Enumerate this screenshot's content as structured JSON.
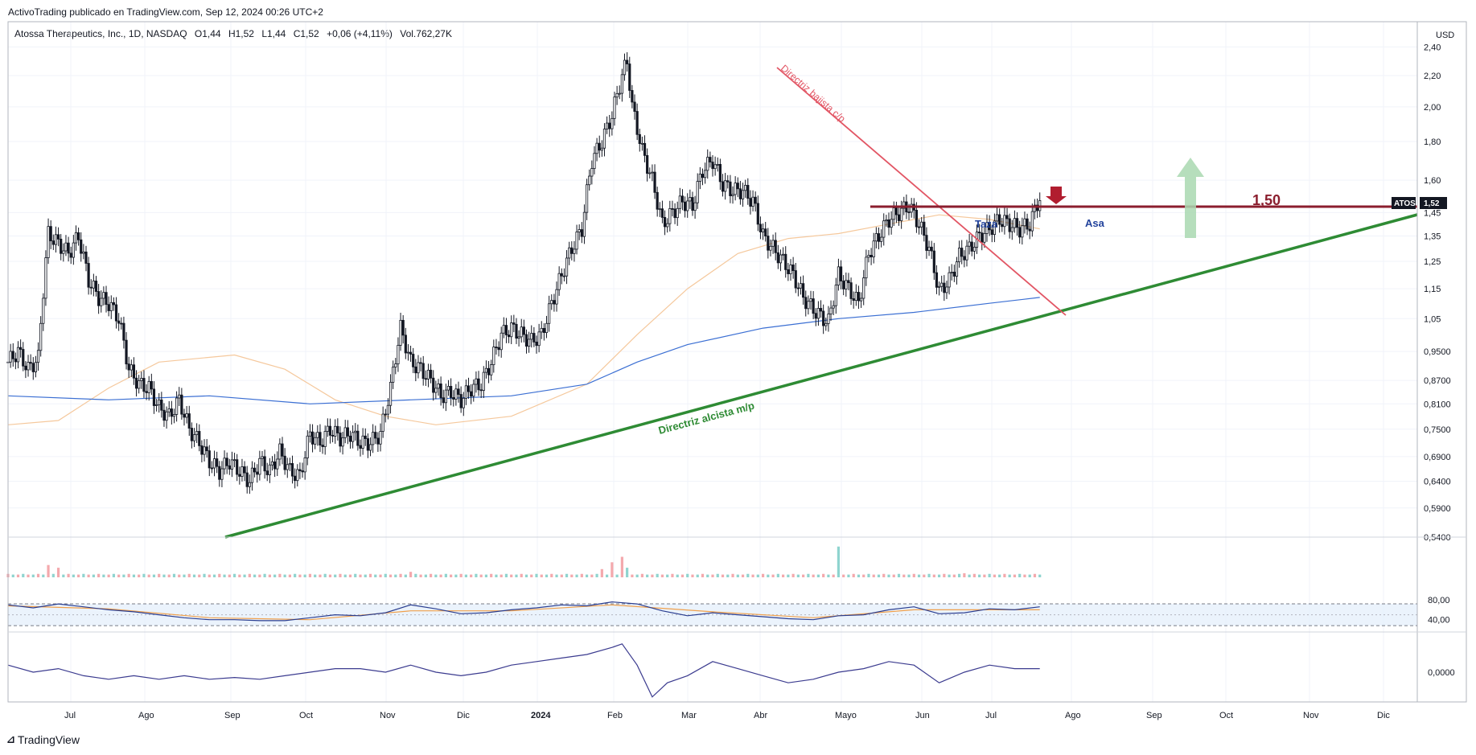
{
  "header": {
    "publisher": "ActivoTrading publicado en TradingView.com, Sep 12, 2024 00:26 UTC+2",
    "symbol": "Atossa Therapeutics, Inc., 1D, NASDAQ",
    "open": "O1,44",
    "high": "H1,52",
    "low": "L1,44",
    "close": "C1,52",
    "change": "+0,06 (+4,11%)",
    "volume": "Vol.762,27K"
  },
  "currency": "USD",
  "footer": {
    "brand": "TradingView",
    "icon": "tradingview-logo-icon"
  },
  "colors": {
    "up": "#131722",
    "down": "#131722",
    "sma_slow": "#3b6fd3",
    "sma_fast": "#f5c89c",
    "support": "#2e8b34",
    "downtrend": "#e25564",
    "resistance": "#8b1e2e",
    "arrow_up": "#a9d8b0",
    "rsi": "#2a3d8f",
    "rsi_ma": "#f0a04b",
    "osc": "#3b3b8f",
    "grid": "#f0f3fa"
  },
  "chart_data": {
    "type": "candlestick",
    "title": "Atossa Therapeutics, Inc., 1D, NASDAQ",
    "y_scale": "log",
    "ylim": [
      0.54,
      2.45
    ],
    "y_ticks": [
      "2,40",
      "2,20",
      "2,00",
      "1,80",
      "1,60",
      "1,45",
      "1,35",
      "1,25",
      "1,15",
      "1,05",
      "0,9500",
      "0,8700",
      "0,8100",
      "0,7500",
      "0,6900",
      "0,6400",
      "0,5900",
      "0,5400"
    ],
    "x_labels": [
      "Jul",
      "Ago",
      "Sep",
      "Oct",
      "Nov",
      "Dic",
      "2024",
      "Feb",
      "Mar",
      "Abr",
      "Mayo",
      "Jun",
      "Jul",
      "Ago",
      "Sep",
      "Oct",
      "Nov",
      "Dic"
    ],
    "price_path": [
      [
        0,
        0.92
      ],
      [
        4,
        0.95
      ],
      [
        8,
        0.9
      ],
      [
        12,
        0.93
      ],
      [
        16,
        1.36
      ],
      [
        20,
        1.32
      ],
      [
        24,
        1.28
      ],
      [
        28,
        1.35
      ],
      [
        32,
        1.18
      ],
      [
        36,
        1.12
      ],
      [
        40,
        1.1
      ],
      [
        44,
        1.05
      ],
      [
        48,
        0.9
      ],
      [
        52,
        0.86
      ],
      [
        56,
        0.85
      ],
      [
        60,
        0.8
      ],
      [
        64,
        0.78
      ],
      [
        68,
        0.82
      ],
      [
        72,
        0.75
      ],
      [
        76,
        0.72
      ],
      [
        80,
        0.68
      ],
      [
        84,
        0.66
      ],
      [
        88,
        0.68
      ],
      [
        92,
        0.66
      ],
      [
        96,
        0.64
      ],
      [
        100,
        0.68
      ],
      [
        104,
        0.66
      ],
      [
        108,
        0.7
      ],
      [
        112,
        0.66
      ],
      [
        116,
        0.65
      ],
      [
        120,
        0.74
      ],
      [
        124,
        0.72
      ],
      [
        128,
        0.75
      ],
      [
        132,
        0.73
      ],
      [
        136,
        0.74
      ],
      [
        140,
        0.72
      ],
      [
        144,
        0.72
      ],
      [
        148,
        0.74
      ],
      [
        152,
        0.85
      ],
      [
        156,
        1.02
      ],
      [
        160,
        0.92
      ],
      [
        164,
        0.9
      ],
      [
        168,
        0.87
      ],
      [
        172,
        0.83
      ],
      [
        176,
        0.84
      ],
      [
        180,
        0.82
      ],
      [
        184,
        0.85
      ],
      [
        188,
        0.86
      ],
      [
        192,
        0.92
      ],
      [
        196,
        1.0
      ],
      [
        200,
        1.02
      ],
      [
        204,
        1.0
      ],
      [
        208,
        0.98
      ],
      [
        212,
        1.0
      ],
      [
        216,
        1.1
      ],
      [
        220,
        1.2
      ],
      [
        224,
        1.3
      ],
      [
        228,
        1.38
      ],
      [
        232,
        1.7
      ],
      [
        236,
        1.8
      ],
      [
        240,
        1.95
      ],
      [
        244,
        2.2
      ],
      [
        246,
        2.3
      ],
      [
        248,
        2.0
      ],
      [
        252,
        1.75
      ],
      [
        256,
        1.6
      ],
      [
        260,
        1.4
      ],
      [
        264,
        1.45
      ],
      [
        268,
        1.5
      ],
      [
        272,
        1.48
      ],
      [
        276,
        1.65
      ],
      [
        280,
        1.7
      ],
      [
        284,
        1.58
      ],
      [
        288,
        1.55
      ],
      [
        292,
        1.55
      ],
      [
        296,
        1.5
      ],
      [
        300,
        1.35
      ],
      [
        304,
        1.3
      ],
      [
        308,
        1.25
      ],
      [
        312,
        1.2
      ],
      [
        316,
        1.12
      ],
      [
        320,
        1.08
      ],
      [
        324,
        1.05
      ],
      [
        326,
        1.04
      ],
      [
        330,
        1.2
      ],
      [
        334,
        1.15
      ],
      [
        338,
        1.1
      ],
      [
        342,
        1.28
      ],
      [
        346,
        1.35
      ],
      [
        350,
        1.42
      ],
      [
        354,
        1.45
      ],
      [
        358,
        1.48
      ],
      [
        362,
        1.4
      ],
      [
        366,
        1.3
      ],
      [
        370,
        1.14
      ],
      [
        374,
        1.18
      ],
      [
        378,
        1.27
      ],
      [
        382,
        1.3
      ],
      [
        386,
        1.35
      ],
      [
        390,
        1.38
      ],
      [
        394,
        1.42
      ],
      [
        398,
        1.4
      ],
      [
        402,
        1.38
      ],
      [
        406,
        1.4
      ],
      [
        410,
        1.52
      ]
    ],
    "sma_slow_path": [
      [
        0,
        0.83
      ],
      [
        40,
        0.82
      ],
      [
        80,
        0.83
      ],
      [
        120,
        0.81
      ],
      [
        160,
        0.82
      ],
      [
        200,
        0.83
      ],
      [
        230,
        0.86
      ],
      [
        250,
        0.92
      ],
      [
        270,
        0.97
      ],
      [
        300,
        1.02
      ],
      [
        330,
        1.05
      ],
      [
        360,
        1.07
      ],
      [
        390,
        1.1
      ],
      [
        410,
        1.12
      ]
    ],
    "sma_fast_path": [
      [
        0,
        0.76
      ],
      [
        20,
        0.77
      ],
      [
        40,
        0.85
      ],
      [
        60,
        0.92
      ],
      [
        90,
        0.94
      ],
      [
        110,
        0.9
      ],
      [
        130,
        0.82
      ],
      [
        150,
        0.78
      ],
      [
        170,
        0.76
      ],
      [
        200,
        0.78
      ],
      [
        230,
        0.86
      ],
      [
        250,
        1.0
      ],
      [
        270,
        1.15
      ],
      [
        290,
        1.28
      ],
      [
        310,
        1.34
      ],
      [
        330,
        1.36
      ],
      [
        350,
        1.4
      ],
      [
        370,
        1.44
      ],
      [
        390,
        1.42
      ],
      [
        410,
        1.38
      ]
    ],
    "annotations": [
      {
        "label": "Directriz bajista c/p",
        "kind": "downtrend"
      },
      {
        "label": "Directriz alcista m/p",
        "kind": "uptrend"
      },
      {
        "label": "1,50",
        "kind": "resistance",
        "value": 1.5
      },
      {
        "label": "Taza",
        "kind": "pattern"
      },
      {
        "label": "Asa",
        "kind": "pattern"
      }
    ],
    "last_price": {
      "ticker": "ATOS",
      "value": "1,52"
    },
    "volume": {
      "spikes": [
        [
          16,
          18
        ],
        [
          20,
          14
        ],
        [
          160,
          8
        ],
        [
          236,
          12
        ],
        [
          240,
          22
        ],
        [
          244,
          30
        ],
        [
          246,
          14
        ],
        [
          330,
          45
        ],
        [
          380,
          6
        ]
      ],
      "base": 4
    },
    "rsi": {
      "levels": [
        "80,00",
        "40,00"
      ],
      "path": [
        [
          0,
          70
        ],
        [
          10,
          64
        ],
        [
          20,
          72
        ],
        [
          30,
          66
        ],
        [
          40,
          60
        ],
        [
          50,
          56
        ],
        [
          60,
          50
        ],
        [
          70,
          44
        ],
        [
          80,
          40
        ],
        [
          90,
          40
        ],
        [
          100,
          38
        ],
        [
          110,
          38
        ],
        [
          120,
          44
        ],
        [
          130,
          50
        ],
        [
          140,
          48
        ],
        [
          150,
          54
        ],
        [
          160,
          70
        ],
        [
          170,
          62
        ],
        [
          180,
          52
        ],
        [
          190,
          54
        ],
        [
          200,
          60
        ],
        [
          210,
          64
        ],
        [
          220,
          70
        ],
        [
          230,
          68
        ],
        [
          240,
          76
        ],
        [
          250,
          72
        ],
        [
          260,
          58
        ],
        [
          270,
          48
        ],
        [
          280,
          54
        ],
        [
          290,
          50
        ],
        [
          300,
          46
        ],
        [
          310,
          42
        ],
        [
          320,
          40
        ],
        [
          330,
          48
        ],
        [
          340,
          50
        ],
        [
          350,
          60
        ],
        [
          360,
          66
        ],
        [
          370,
          52
        ],
        [
          380,
          54
        ],
        [
          390,
          62
        ],
        [
          400,
          60
        ],
        [
          410,
          66
        ]
      ],
      "ma_path": [
        [
          0,
          68
        ],
        [
          40,
          62
        ],
        [
          80,
          44
        ],
        [
          120,
          40
        ],
        [
          160,
          58
        ],
        [
          200,
          58
        ],
        [
          240,
          70
        ],
        [
          280,
          56
        ],
        [
          320,
          44
        ],
        [
          360,
          60
        ],
        [
          410,
          60
        ]
      ]
    },
    "oscillator": {
      "zero_label": "0,0000",
      "path": [
        [
          0,
          4
        ],
        [
          10,
          0
        ],
        [
          20,
          2
        ],
        [
          30,
          -2
        ],
        [
          40,
          -4
        ],
        [
          50,
          -2
        ],
        [
          60,
          -4
        ],
        [
          70,
          -2
        ],
        [
          80,
          -4
        ],
        [
          90,
          -3
        ],
        [
          100,
          -4
        ],
        [
          110,
          -2
        ],
        [
          120,
          0
        ],
        [
          130,
          2
        ],
        [
          140,
          2
        ],
        [
          150,
          0
        ],
        [
          160,
          4
        ],
        [
          170,
          0
        ],
        [
          180,
          -2
        ],
        [
          190,
          0
        ],
        [
          200,
          4
        ],
        [
          210,
          6
        ],
        [
          220,
          8
        ],
        [
          230,
          10
        ],
        [
          240,
          14
        ],
        [
          244,
          16
        ],
        [
          250,
          4
        ],
        [
          256,
          -14
        ],
        [
          262,
          -6
        ],
        [
          270,
          -2
        ],
        [
          280,
          6
        ],
        [
          290,
          2
        ],
        [
          300,
          -2
        ],
        [
          310,
          -6
        ],
        [
          320,
          -4
        ],
        [
          330,
          0
        ],
        [
          340,
          2
        ],
        [
          350,
          6
        ],
        [
          360,
          4
        ],
        [
          370,
          -6
        ],
        [
          380,
          0
        ],
        [
          390,
          4
        ],
        [
          400,
          2
        ],
        [
          410,
          2
        ]
      ]
    }
  }
}
